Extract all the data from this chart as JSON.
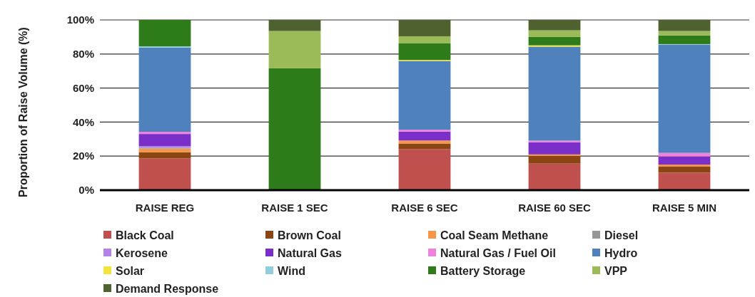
{
  "chart_data": {
    "type": "bar",
    "stacked": true,
    "ylabel": "Proportion of Raise Volume (%)",
    "categories": [
      "RAISE REG",
      "RAISE 1 SEC",
      "RAISE 6 SEC",
      "RAISE 60 SEC",
      "RAISE 5 MIN"
    ],
    "ylim": [
      0,
      100
    ],
    "yticks": [
      {
        "value": 0,
        "label": "0%"
      },
      {
        "value": 20,
        "label": "20%"
      },
      {
        "value": 40,
        "label": "40%"
      },
      {
        "value": 60,
        "label": "60%"
      },
      {
        "value": 80,
        "label": "80%"
      },
      {
        "value": 100,
        "label": "100%"
      }
    ],
    "grid": "y",
    "legend": "bottom",
    "series": [
      {
        "name": "Black Coal",
        "color": "#c0504d",
        "values": [
          18.7,
          0,
          24.1,
          15.6,
          10.3
        ]
      },
      {
        "name": "Brown Coal",
        "color": "#8b4513",
        "values": [
          3.6,
          0,
          3.3,
          4.5,
          3.5
        ]
      },
      {
        "name": "Coal Seam Methane",
        "color": "#f79646",
        "values": [
          2.1,
          0,
          1.8,
          0.9,
          1.2
        ]
      },
      {
        "name": "Diesel",
        "color": "#969696",
        "values": [
          0.5,
          0,
          0,
          0,
          0
        ]
      },
      {
        "name": "Kerosene",
        "color": "#b384e8",
        "values": [
          0.9,
          0,
          0,
          0,
          0
        ]
      },
      {
        "name": "Natural Gas",
        "color": "#7b2fc9",
        "values": [
          7.2,
          0,
          5.2,
          7.1,
          4.8
        ]
      },
      {
        "name": "Natural Gas / Fuel Oil",
        "color": "#ee82dc",
        "values": [
          1.3,
          0,
          1.1,
          1.0,
          2.1
        ]
      },
      {
        "name": "Hydro",
        "color": "#4f81bd",
        "values": [
          49.5,
          0,
          40.4,
          55.2,
          63.6
        ]
      },
      {
        "name": "Solar",
        "color": "#f2e43a",
        "values": [
          0,
          0,
          0.6,
          0.8,
          0
        ]
      },
      {
        "name": "Wind",
        "color": "#92cddc",
        "values": [
          0.7,
          0,
          0,
          0,
          0.3
        ]
      },
      {
        "name": "Battery Storage",
        "color": "#2e7b1a",
        "values": [
          15.5,
          71.6,
          9.7,
          4.9,
          5.1
        ]
      },
      {
        "name": "VPP",
        "color": "#9bbb59",
        "values": [
          0,
          21.9,
          4.2,
          3.9,
          2.6
        ]
      },
      {
        "name": "Demand Response",
        "color": "#4f612e",
        "values": [
          0,
          6.5,
          9.6,
          6.1,
          6.5
        ]
      }
    ]
  }
}
